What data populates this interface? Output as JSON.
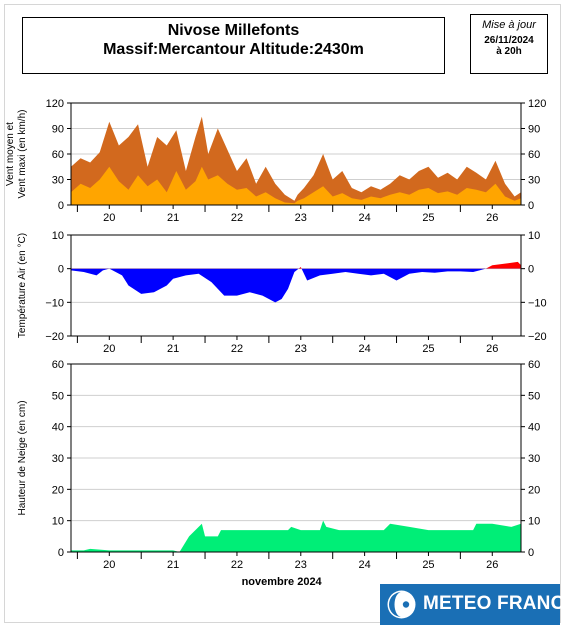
{
  "header": {
    "title_line1": "Nivose Millefonts",
    "title_line2": "Massif:Mercantour Altitude:2430m"
  },
  "update": {
    "label": "Mise à jour",
    "date": "26/11/2024",
    "time": "à 20h"
  },
  "xaxis": {
    "label": "novembre 2024",
    "day_labels": [
      "20",
      "21",
      "22",
      "23",
      "24",
      "25",
      "26"
    ]
  },
  "brand": {
    "name": "METEO FRANCE",
    "color": "#1a6fb5"
  },
  "chart_data": [
    {
      "type": "area",
      "id": "wind",
      "ylabel_line1": "Vent moyen et",
      "ylabel_line2": "Vent maxi (en km/h)",
      "ylim": [
        0,
        120
      ],
      "yticks": [
        0,
        30,
        60,
        90,
        120
      ],
      "colors": {
        "max": "#d2691e",
        "mean": "#ffa500"
      },
      "series": [
        {
          "name": "Vent maxi",
          "x": [
            19.4,
            19.55,
            19.7,
            19.85,
            20.0,
            20.15,
            20.3,
            20.45,
            20.6,
            20.75,
            20.9,
            21.05,
            21.2,
            21.35,
            21.45,
            21.55,
            21.7,
            21.85,
            22.0,
            22.15,
            22.3,
            22.45,
            22.6,
            22.75,
            22.9,
            22.95,
            23.05,
            23.2,
            23.35,
            23.5,
            23.65,
            23.8,
            23.95,
            24.1,
            24.25,
            24.4,
            24.55,
            24.7,
            24.85,
            25.0,
            25.15,
            25.3,
            25.45,
            25.6,
            25.75,
            25.9,
            26.05,
            26.2,
            26.35,
            26.45
          ],
          "y": [
            45,
            55,
            50,
            62,
            98,
            70,
            80,
            95,
            45,
            80,
            70,
            88,
            40,
            80,
            104,
            60,
            90,
            65,
            40,
            55,
            25,
            45,
            25,
            12,
            5,
            12,
            20,
            35,
            60,
            30,
            40,
            20,
            15,
            22,
            18,
            25,
            35,
            30,
            40,
            45,
            32,
            38,
            30,
            45,
            38,
            30,
            52,
            25,
            10,
            15
          ]
        },
        {
          "name": "Vent moyen",
          "x": [
            19.4,
            19.55,
            19.7,
            19.85,
            20.0,
            20.15,
            20.3,
            20.45,
            20.6,
            20.75,
            20.9,
            21.05,
            21.2,
            21.35,
            21.45,
            21.55,
            21.7,
            21.85,
            22.0,
            22.15,
            22.3,
            22.45,
            22.6,
            22.75,
            22.9,
            22.95,
            23.05,
            23.2,
            23.35,
            23.5,
            23.65,
            23.8,
            23.95,
            24.1,
            24.25,
            24.4,
            24.55,
            24.7,
            24.85,
            25.0,
            25.15,
            25.3,
            25.45,
            25.6,
            25.75,
            25.9,
            26.05,
            26.2,
            26.35,
            26.45
          ],
          "y": [
            15,
            25,
            20,
            30,
            45,
            28,
            18,
            35,
            22,
            30,
            15,
            40,
            18,
            28,
            45,
            30,
            35,
            25,
            18,
            20,
            10,
            15,
            8,
            3,
            2,
            5,
            8,
            15,
            22,
            10,
            14,
            8,
            6,
            10,
            8,
            12,
            15,
            12,
            18,
            20,
            14,
            16,
            12,
            20,
            18,
            15,
            25,
            10,
            5,
            8
          ]
        }
      ]
    },
    {
      "type": "area",
      "id": "temperature",
      "ylabel": "Température Air (en °C)",
      "ylim": [
        -20,
        10
      ],
      "yticks": [
        -20,
        -10,
        0,
        10
      ],
      "colors": {
        "negative": "#0000ff",
        "positive": "#ff0000"
      },
      "series": [
        {
          "name": "Température Air",
          "x": [
            19.4,
            19.6,
            19.8,
            19.9,
            20.0,
            20.2,
            20.3,
            20.5,
            20.7,
            20.9,
            21.0,
            21.2,
            21.4,
            21.6,
            21.8,
            22.0,
            22.2,
            22.4,
            22.6,
            22.7,
            22.8,
            22.9,
            23.0,
            23.1,
            23.3,
            23.5,
            23.7,
            23.9,
            24.1,
            24.3,
            24.5,
            24.7,
            24.9,
            25.1,
            25.3,
            25.5,
            25.7,
            25.8,
            25.9,
            26.0,
            26.2,
            26.4,
            26.45
          ],
          "y": [
            -0.5,
            -1,
            -2,
            -0.5,
            0,
            -2,
            -5,
            -7.5,
            -7,
            -5,
            -3,
            -2,
            -1.5,
            -4,
            -8,
            -8,
            -7,
            -8,
            -10,
            -9,
            -6,
            -1,
            0.5,
            -3.5,
            -2,
            -1.5,
            -1,
            -1.5,
            -2,
            -1.5,
            -3.5,
            -1.5,
            -1,
            -1.2,
            -0.8,
            -0.8,
            -1,
            -0.5,
            0,
            1,
            1.5,
            2,
            1
          ]
        }
      ]
    },
    {
      "type": "area",
      "id": "snow",
      "ylabel": "Hauteur de Neige (en cm)",
      "ylim": [
        0,
        60
      ],
      "yticks": [
        0,
        10,
        20,
        30,
        40,
        50,
        60
      ],
      "colors": {
        "fill": "#00ee77"
      },
      "series": [
        {
          "name": "Hauteur de Neige",
          "x": [
            19.4,
            19.6,
            19.7,
            20.0,
            20.5,
            21.0,
            21.1,
            21.25,
            21.4,
            21.45,
            21.5,
            21.7,
            21.75,
            22.0,
            22.5,
            22.8,
            22.85,
            23.0,
            23.3,
            23.35,
            23.4,
            23.6,
            24.0,
            24.3,
            24.4,
            24.7,
            25.0,
            25.5,
            25.7,
            25.75,
            26.0,
            26.3,
            26.45
          ],
          "y": [
            0.5,
            0.5,
            1,
            0.5,
            0.5,
            0.5,
            0,
            5,
            8,
            9,
            5,
            5,
            7,
            7,
            7,
            7,
            8,
            7,
            7,
            10,
            8,
            7,
            7,
            7,
            9,
            8,
            7,
            7,
            7,
            9,
            9,
            8,
            9
          ]
        }
      ]
    }
  ]
}
